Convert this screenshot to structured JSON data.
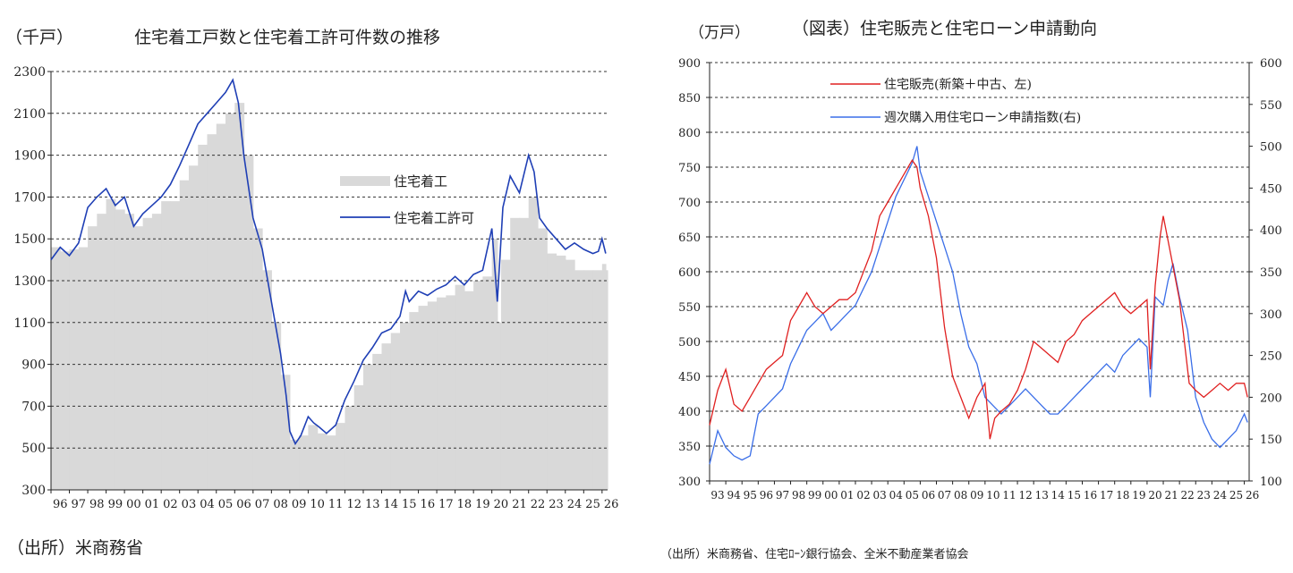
{
  "chart_data": [
    {
      "type": "bar",
      "title": "住宅着工戸数と住宅着工許可件数の推移",
      "unit_label": "（千戸）",
      "ylim": [
        300,
        2300
      ],
      "y_ticks": [
        300,
        500,
        700,
        900,
        1100,
        1300,
        1500,
        1700,
        1900,
        2100,
        2300
      ],
      "x_tick_labels": [
        "96",
        "97",
        "98",
        "99",
        "00",
        "01",
        "02",
        "03",
        "04",
        "05",
        "06",
        "07",
        "08",
        "09",
        "10",
        "11",
        "12",
        "13",
        "14",
        "15",
        "16",
        "17",
        "18",
        "19",
        "20",
        "21",
        "22",
        "23",
        "24",
        "25",
        "26"
      ],
      "x_range": [
        1996.0,
        2026.3
      ],
      "grid": "horizontal-dashed",
      "legend_placement": "center-right",
      "series": [
        {
          "name": "住宅着工",
          "kind": "bar",
          "color": "#d9d9d9",
          "x": [
            1996.0,
            1996.5,
            1997.0,
            1997.5,
            1998.0,
            1998.5,
            1999.0,
            1999.5,
            2000.0,
            2000.5,
            2001.0,
            2001.5,
            2002.0,
            2002.5,
            2003.0,
            2003.5,
            2004.0,
            2004.5,
            2005.0,
            2005.5,
            2006.0,
            2006.5,
            2007.0,
            2007.5,
            2008.0,
            2008.5,
            2009.0,
            2009.5,
            2010.0,
            2010.5,
            2011.0,
            2011.5,
            2012.0,
            2012.5,
            2013.0,
            2013.5,
            2014.0,
            2014.5,
            2015.0,
            2015.5,
            2016.0,
            2016.5,
            2017.0,
            2017.5,
            2018.0,
            2018.5,
            2019.0,
            2019.5,
            2020.0,
            2020.3,
            2020.5,
            2021.0,
            2021.5,
            2022.0,
            2022.5,
            2023.0,
            2023.5,
            2024.0,
            2024.5,
            2025.0,
            2025.5,
            2026.0,
            2026.2
          ],
          "values": [
            1460,
            1440,
            1450,
            1460,
            1560,
            1620,
            1690,
            1640,
            1620,
            1560,
            1600,
            1620,
            1680,
            1680,
            1780,
            1850,
            1950,
            2000,
            2050,
            2100,
            2150,
            1900,
            1550,
            1350,
            1100,
            850,
            540,
            560,
            610,
            570,
            560,
            620,
            700,
            800,
            900,
            950,
            1000,
            1050,
            1100,
            1150,
            1180,
            1200,
            1220,
            1230,
            1280,
            1250,
            1300,
            1320,
            1500,
            1100,
            1400,
            1600,
            1600,
            1700,
            1550,
            1430,
            1420,
            1400,
            1350,
            1350,
            1350,
            1380,
            1350
          ]
        },
        {
          "name": "住宅着工許可",
          "kind": "line",
          "color": "#1f3fb5",
          "x": [
            1996.0,
            1996.5,
            1997.0,
            1997.5,
            1998.0,
            1998.5,
            1999.0,
            1999.5,
            2000.0,
            2000.5,
            2001.0,
            2001.5,
            2002.0,
            2002.5,
            2003.0,
            2003.5,
            2004.0,
            2004.5,
            2005.0,
            2005.5,
            2005.9,
            2006.2,
            2006.5,
            2007.0,
            2007.5,
            2008.0,
            2008.5,
            2008.8,
            2009.0,
            2009.3,
            2009.6,
            2010.0,
            2010.3,
            2010.6,
            2011.0,
            2011.5,
            2012.0,
            2012.5,
            2013.0,
            2013.5,
            2014.0,
            2014.5,
            2015.0,
            2015.3,
            2015.5,
            2016.0,
            2016.5,
            2017.0,
            2017.5,
            2018.0,
            2018.5,
            2019.0,
            2019.5,
            2020.0,
            2020.3,
            2020.6,
            2021.0,
            2021.5,
            2022.0,
            2022.3,
            2022.6,
            2023.0,
            2023.5,
            2024.0,
            2024.5,
            2025.0,
            2025.5,
            2025.8,
            2026.0,
            2026.2
          ],
          "values": [
            1400,
            1460,
            1420,
            1480,
            1650,
            1700,
            1740,
            1660,
            1700,
            1560,
            1620,
            1660,
            1700,
            1760,
            1850,
            1950,
            2050,
            2100,
            2150,
            2200,
            2260,
            2150,
            1900,
            1600,
            1450,
            1200,
            950,
            750,
            580,
            520,
            560,
            650,
            620,
            600,
            570,
            610,
            730,
            820,
            920,
            980,
            1050,
            1070,
            1130,
            1250,
            1200,
            1250,
            1230,
            1260,
            1280,
            1320,
            1280,
            1330,
            1350,
            1550,
            1200,
            1650,
            1800,
            1720,
            1900,
            1820,
            1600,
            1550,
            1500,
            1450,
            1480,
            1450,
            1430,
            1440,
            1500,
            1430
          ]
        }
      ]
    },
    {
      "type": "line",
      "title": "（図表）住宅販売と住宅ローン申請動向",
      "unit_label": "（万戸）",
      "ylim": [
        300,
        900
      ],
      "y_ticks": [
        300,
        350,
        400,
        450,
        500,
        550,
        600,
        650,
        700,
        750,
        800,
        850,
        900
      ],
      "y2lim": [
        100,
        600
      ],
      "y2_ticks": [
        100,
        150,
        200,
        250,
        300,
        350,
        400,
        450,
        500,
        550,
        600
      ],
      "x_tick_labels": [
        "93",
        "94",
        "95",
        "96",
        "97",
        "98",
        "99",
        "00",
        "01",
        "02",
        "03",
        "04",
        "05",
        "06",
        "07",
        "08",
        "09",
        "10",
        "11",
        "12",
        "13",
        "14",
        "15",
        "16",
        "17",
        "18",
        "19",
        "20",
        "21",
        "22",
        "23",
        "24",
        "25",
        "26"
      ],
      "x_range": [
        1993.0,
        2026.3
      ],
      "grid": "horizontal-dashed",
      "legend_placement": "top-left",
      "series": [
        {
          "name": "住宅販売(新築＋中古、左)",
          "axis": "left",
          "color": "#e02020",
          "x": [
            1993.0,
            1993.5,
            1994.0,
            1994.5,
            1995.0,
            1995.5,
            1996.0,
            1996.5,
            1997.0,
            1997.5,
            1998.0,
            1998.5,
            1999.0,
            1999.5,
            2000.0,
            2000.5,
            2001.0,
            2001.5,
            2002.0,
            2002.5,
            2003.0,
            2003.5,
            2004.0,
            2004.5,
            2005.0,
            2005.5,
            2005.8,
            2006.0,
            2006.5,
            2007.0,
            2007.5,
            2008.0,
            2008.5,
            2009.0,
            2009.5,
            2010.0,
            2010.3,
            2010.6,
            2011.0,
            2011.5,
            2012.0,
            2012.5,
            2013.0,
            2013.5,
            2014.0,
            2014.5,
            2015.0,
            2015.5,
            2016.0,
            2016.5,
            2017.0,
            2017.5,
            2018.0,
            2018.5,
            2019.0,
            2019.5,
            2020.0,
            2020.2,
            2020.5,
            2020.8,
            2021.0,
            2021.5,
            2022.0,
            2022.3,
            2022.6,
            2023.0,
            2023.5,
            2024.0,
            2024.5,
            2025.0,
            2025.5,
            2026.0,
            2026.2
          ],
          "values": [
            380,
            430,
            460,
            410,
            400,
            420,
            440,
            460,
            470,
            480,
            530,
            550,
            570,
            550,
            540,
            550,
            560,
            560,
            570,
            600,
            630,
            680,
            700,
            720,
            740,
            760,
            750,
            720,
            680,
            620,
            520,
            450,
            420,
            390,
            420,
            440,
            360,
            390,
            400,
            410,
            430,
            460,
            500,
            490,
            480,
            470,
            500,
            510,
            530,
            540,
            550,
            560,
            570,
            550,
            540,
            550,
            560,
            460,
            580,
            650,
            680,
            620,
            560,
            500,
            440,
            430,
            420,
            430,
            440,
            430,
            440,
            440,
            420
          ]
        },
        {
          "name": "週次購入用住宅ローン申請指数(右)",
          "axis": "right",
          "color": "#3a6ee8",
          "x": [
            1993.0,
            1993.5,
            1994.0,
            1994.5,
            1995.0,
            1995.5,
            1996.0,
            1996.5,
            1997.0,
            1997.5,
            1998.0,
            1998.5,
            1999.0,
            1999.5,
            2000.0,
            2000.5,
            2001.0,
            2001.5,
            2002.0,
            2002.5,
            2003.0,
            2003.5,
            2004.0,
            2004.5,
            2005.0,
            2005.5,
            2005.8,
            2006.0,
            2006.5,
            2007.0,
            2007.5,
            2008.0,
            2008.5,
            2009.0,
            2009.5,
            2010.0,
            2010.5,
            2011.0,
            2011.5,
            2012.0,
            2012.5,
            2013.0,
            2013.5,
            2014.0,
            2014.5,
            2015.0,
            2015.5,
            2016.0,
            2016.5,
            2017.0,
            2017.5,
            2018.0,
            2018.5,
            2019.0,
            2019.5,
            2020.0,
            2020.2,
            2020.5,
            2021.0,
            2021.3,
            2021.6,
            2022.0,
            2022.5,
            2023.0,
            2023.5,
            2024.0,
            2024.5,
            2025.0,
            2025.5,
            2026.0,
            2026.2
          ],
          "values": [
            120,
            160,
            140,
            130,
            125,
            130,
            180,
            190,
            200,
            210,
            240,
            260,
            280,
            290,
            300,
            280,
            290,
            300,
            310,
            330,
            350,
            380,
            410,
            440,
            460,
            480,
            500,
            470,
            440,
            410,
            380,
            350,
            300,
            260,
            240,
            200,
            190,
            180,
            190,
            200,
            210,
            200,
            190,
            180,
            180,
            190,
            200,
            210,
            220,
            230,
            240,
            230,
            250,
            260,
            270,
            260,
            200,
            320,
            310,
            340,
            360,
            320,
            280,
            200,
            170,
            150,
            140,
            150,
            160,
            180,
            170
          ]
        }
      ]
    }
  ],
  "sources": {
    "left": "（出所）米商務省",
    "right": "（出所）米商務省、住宅ﾛｰﾝ銀行協会、全米不動産業者協会"
  }
}
